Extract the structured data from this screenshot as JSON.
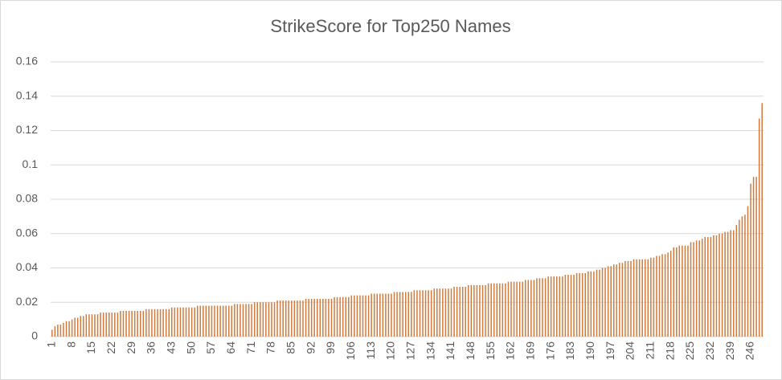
{
  "chart_data": {
    "type": "bar",
    "title": "StrikeScore for Top250 Names",
    "categories": [
      "1",
      null,
      null,
      null,
      null,
      null,
      null,
      "8",
      null,
      null,
      null,
      null,
      null,
      null,
      "15",
      null,
      null,
      null,
      null,
      null,
      null,
      "22",
      null,
      null,
      null,
      null,
      null,
      null,
      "29",
      null,
      null,
      null,
      null,
      null,
      null,
      "36",
      null,
      null,
      null,
      null,
      null,
      null,
      "43",
      null,
      null,
      null,
      null,
      null,
      null,
      "50",
      null,
      null,
      null,
      null,
      null,
      null,
      "57",
      null,
      null,
      null,
      null,
      null,
      null,
      "64",
      null,
      null,
      null,
      null,
      null,
      null,
      "71",
      null,
      null,
      null,
      null,
      null,
      null,
      "78",
      null,
      null,
      null,
      null,
      null,
      null,
      "85",
      null,
      null,
      null,
      null,
      null,
      null,
      "92",
      null,
      null,
      null,
      null,
      null,
      null,
      "99",
      null,
      null,
      null,
      null,
      null,
      null,
      "106",
      null,
      null,
      null,
      null,
      null,
      null,
      "113",
      null,
      null,
      null,
      null,
      null,
      null,
      "120",
      null,
      null,
      null,
      null,
      null,
      null,
      "127",
      null,
      null,
      null,
      null,
      null,
      null,
      "134",
      null,
      null,
      null,
      null,
      null,
      null,
      "141",
      null,
      null,
      null,
      null,
      null,
      null,
      "148",
      null,
      null,
      null,
      null,
      null,
      null,
      "155",
      null,
      null,
      null,
      null,
      null,
      null,
      "162",
      null,
      null,
      null,
      null,
      null,
      null,
      "169",
      null,
      null,
      null,
      null,
      null,
      null,
      "176",
      null,
      null,
      null,
      null,
      null,
      null,
      "183",
      null,
      null,
      null,
      null,
      null,
      null,
      "190",
      null,
      null,
      null,
      null,
      null,
      null,
      "197",
      null,
      null,
      null,
      null,
      null,
      null,
      "204",
      null,
      null,
      null,
      null,
      null,
      null,
      "211",
      null,
      null,
      null,
      null,
      null,
      null,
      "218",
      null,
      null,
      null,
      null,
      null,
      null,
      "225",
      null,
      null,
      null,
      null,
      null,
      null,
      "232",
      null,
      null,
      null,
      null,
      null,
      null,
      "239",
      null,
      null,
      null,
      null,
      null,
      null,
      "246",
      null,
      null,
      null,
      null
    ],
    "values": [
      0.004,
      0.006,
      0.007,
      0.007,
      0.008,
      0.009,
      0.009,
      0.01,
      0.011,
      0.011,
      0.012,
      0.012,
      0.013,
      0.013,
      0.013,
      0.013,
      0.013,
      0.014,
      0.014,
      0.014,
      0.014,
      0.014,
      0.014,
      0.014,
      0.015,
      0.015,
      0.015,
      0.015,
      0.015,
      0.015,
      0.015,
      0.015,
      0.015,
      0.016,
      0.016,
      0.016,
      0.016,
      0.016,
      0.016,
      0.016,
      0.016,
      0.016,
      0.017,
      0.017,
      0.017,
      0.017,
      0.017,
      0.017,
      0.017,
      0.017,
      0.017,
      0.018,
      0.018,
      0.018,
      0.018,
      0.018,
      0.018,
      0.018,
      0.018,
      0.018,
      0.018,
      0.018,
      0.018,
      0.018,
      0.019,
      0.019,
      0.019,
      0.019,
      0.019,
      0.019,
      0.019,
      0.02,
      0.02,
      0.02,
      0.02,
      0.02,
      0.02,
      0.02,
      0.02,
      0.021,
      0.021,
      0.021,
      0.021,
      0.021,
      0.021,
      0.021,
      0.021,
      0.021,
      0.021,
      0.022,
      0.022,
      0.022,
      0.022,
      0.022,
      0.022,
      0.022,
      0.022,
      0.022,
      0.022,
      0.023,
      0.023,
      0.023,
      0.023,
      0.023,
      0.023,
      0.024,
      0.024,
      0.024,
      0.024,
      0.024,
      0.024,
      0.024,
      0.025,
      0.025,
      0.025,
      0.025,
      0.025,
      0.025,
      0.025,
      0.025,
      0.026,
      0.026,
      0.026,
      0.026,
      0.026,
      0.026,
      0.026,
      0.027,
      0.027,
      0.027,
      0.027,
      0.027,
      0.027,
      0.027,
      0.028,
      0.028,
      0.028,
      0.028,
      0.028,
      0.028,
      0.028,
      0.029,
      0.029,
      0.029,
      0.029,
      0.029,
      0.03,
      0.03,
      0.03,
      0.03,
      0.03,
      0.03,
      0.03,
      0.031,
      0.031,
      0.031,
      0.031,
      0.031,
      0.031,
      0.031,
      0.032,
      0.032,
      0.032,
      0.032,
      0.032,
      0.032,
      0.033,
      0.033,
      0.033,
      0.033,
      0.034,
      0.034,
      0.034,
      0.034,
      0.035,
      0.035,
      0.035,
      0.035,
      0.035,
      0.035,
      0.036,
      0.036,
      0.036,
      0.036,
      0.037,
      0.037,
      0.037,
      0.037,
      0.038,
      0.038,
      0.038,
      0.039,
      0.039,
      0.04,
      0.04,
      0.041,
      0.041,
      0.042,
      0.042,
      0.043,
      0.043,
      0.044,
      0.044,
      0.044,
      0.045,
      0.045,
      0.045,
      0.045,
      0.045,
      0.045,
      0.046,
      0.046,
      0.047,
      0.047,
      0.048,
      0.048,
      0.049,
      0.05,
      0.052,
      0.052,
      0.053,
      0.053,
      0.053,
      0.053,
      0.055,
      0.055,
      0.056,
      0.056,
      0.057,
      0.058,
      0.058,
      0.058,
      0.059,
      0.059,
      0.06,
      0.06,
      0.061,
      0.061,
      0.062,
      0.062,
      0.065,
      0.068,
      0.07,
      0.071,
      0.076,
      0.089,
      0.093,
      0.093,
      0.127,
      0.136
    ],
    "color": "#d07a3c",
    "ylim": [
      0,
      0.16
    ],
    "yticks": [
      0,
      0.02,
      0.04,
      0.06,
      0.08,
      0.1,
      0.12,
      0.14,
      0.16
    ],
    "grid": true
  }
}
